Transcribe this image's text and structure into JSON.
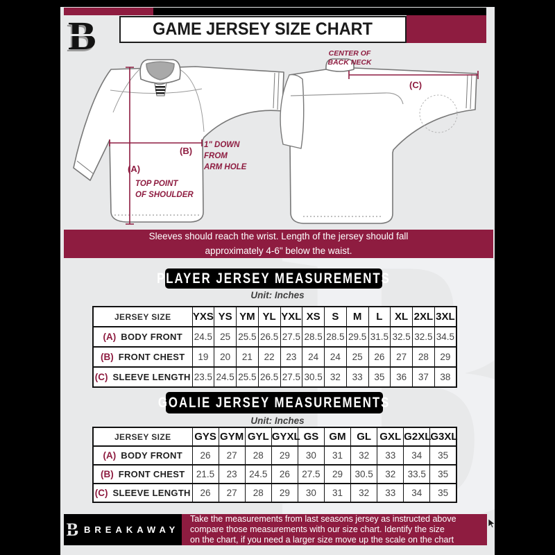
{
  "header": {
    "title": "GAME JERSEY SIZE CHART",
    "logo_letter": "B"
  },
  "diagram": {
    "front": {
      "a_label": "(A)",
      "a_note": [
        "TOP POINT",
        "OF SHOULDER"
      ],
      "b_label": "(B)",
      "b_note": [
        "1\" DOWN",
        "FROM",
        "ARM HOLE"
      ]
    },
    "back": {
      "c_label": "(C)",
      "c_note": [
        "CENTER OF",
        "BACK NECK"
      ]
    }
  },
  "banner": {
    "lines": [
      "Sleeves should reach the wrist. Length of the jersey should fall",
      "approximately 4-6\" below the waist."
    ]
  },
  "player_table": {
    "title": "PLAYER JERSEY MEASUREMENTS",
    "unit": "Unit: Inches",
    "corner": "JERSEY SIZE",
    "sizes": [
      "YXS",
      "YS",
      "YM",
      "YL",
      "YXL",
      "XS",
      "S",
      "M",
      "L",
      "XL",
      "2XL",
      "3XL"
    ],
    "rows": [
      {
        "key": "(A)",
        "label": "BODY FRONT",
        "values": [
          "24.5",
          "25",
          "25.5",
          "26.5",
          "27.5",
          "28.5",
          "28.5",
          "29.5",
          "31.5",
          "32.5",
          "32.5",
          "34.5"
        ]
      },
      {
        "key": "(B)",
        "label": "FRONT CHEST",
        "values": [
          "19",
          "20",
          "21",
          "22",
          "23",
          "24",
          "24",
          "25",
          "26",
          "27",
          "28",
          "29"
        ]
      },
      {
        "key": "(C)",
        "label": "SLEEVE LENGTH",
        "values": [
          "23.5",
          "24.5",
          "25.5",
          "26.5",
          "27.5",
          "30.5",
          "32",
          "33",
          "35",
          "36",
          "37",
          "38"
        ]
      }
    ]
  },
  "goalie_table": {
    "title": "GOALIE JERSEY MEASUREMENTS",
    "unit": "Unit: Inches",
    "corner": "JERSEY SIZE",
    "sizes": [
      "GYS",
      "GYM",
      "GYL",
      "GYXL",
      "GS",
      "GM",
      "GL",
      "GXL",
      "G2XL",
      "G3XL"
    ],
    "rows": [
      {
        "key": "(A)",
        "label": "BODY FRONT",
        "values": [
          "26",
          "27",
          "28",
          "29",
          "30",
          "31",
          "32",
          "33",
          "34",
          "35"
        ]
      },
      {
        "key": "(B)",
        "label": "FRONT CHEST",
        "values": [
          "21.5",
          "23",
          "24.5",
          "26",
          "27.5",
          "29",
          "30.5",
          "32",
          "33.5",
          "35"
        ]
      },
      {
        "key": "(C)",
        "label": "SLEEVE LENGTH",
        "values": [
          "26",
          "27",
          "28",
          "29",
          "30",
          "31",
          "32",
          "33",
          "34",
          "35"
        ]
      }
    ]
  },
  "footer": {
    "brand": "BREAKAWAY",
    "logo_letter": "B",
    "lines": [
      "Take the measurements from last seasons jersey as instructed above",
      "compare those measurements  with our size chart. Identify the size",
      "on the chart, if you need a larger size move up the scale on the chart"
    ]
  },
  "colors": {
    "maroon": "#8e1c40",
    "black": "#000000",
    "page_background": "#e8e9ea",
    "table_background": "#ffffff",
    "diagram_outline": "#777777"
  },
  "watermark_letter": "B"
}
